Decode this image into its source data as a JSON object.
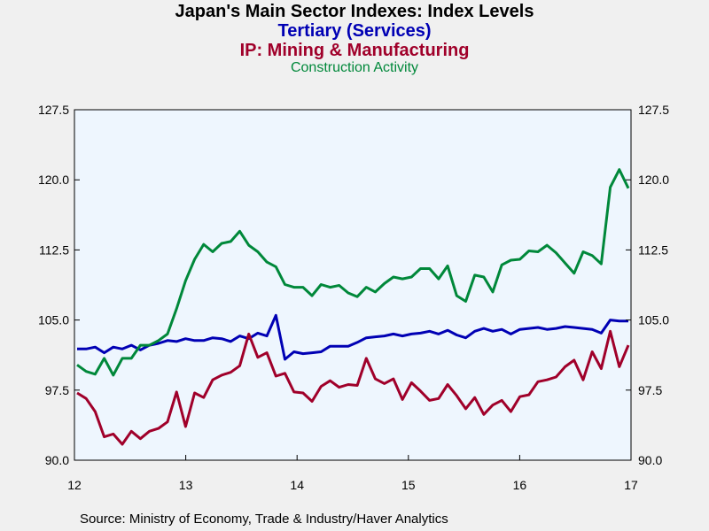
{
  "titles": {
    "main": "Japan's Main Sector Indexes: Index Levels",
    "line2": "Tertiary (Services)",
    "line3": "IP: Mining & Manufacturing",
    "line4": "Construction Activity"
  },
  "source": "Source:  Ministry of Economy, Trade & Industry/Haver Analytics",
  "chart_data": {
    "type": "line",
    "title": "Japan's Main Sector Indexes: Index Levels",
    "x_start": "2012-01",
    "x_end": "2017-01",
    "x_ticks": [
      "12",
      "13",
      "14",
      "15",
      "16",
      "17"
    ],
    "ylim": [
      90.0,
      127.5
    ],
    "y_ticks": [
      "90.0",
      "97.5",
      "105.0",
      "112.5",
      "120.0",
      "127.5"
    ],
    "y_tick_values": [
      90.0,
      97.5,
      105.0,
      112.5,
      120.0,
      127.5
    ],
    "grid": false,
    "colors": {
      "plot_bg": "#eef6fe",
      "page_bg": "#f0f0f0",
      "tertiary": "#0000b4",
      "ip": "#a0002a",
      "construction": "#00883a"
    },
    "series": [
      {
        "name": "Tertiary (Services)",
        "color": "#0000b4",
        "values": [
          101.9,
          101.9,
          102.1,
          101.5,
          102.1,
          101.9,
          102.3,
          101.8,
          102.3,
          102.5,
          102.8,
          102.7,
          103.0,
          102.8,
          102.8,
          103.1,
          103.0,
          102.7,
          103.3,
          103.0,
          103.6,
          103.3,
          105.5,
          100.8,
          101.6,
          101.4,
          101.5,
          101.6,
          102.2,
          102.2,
          102.2,
          102.6,
          103.1,
          103.2,
          103.3,
          103.5,
          103.3,
          103.5,
          103.6,
          103.8,
          103.5,
          103.9,
          103.4,
          103.1,
          103.8,
          104.1,
          103.8,
          104.0,
          103.5,
          104.0,
          104.1,
          104.2,
          104.0,
          104.1,
          104.3,
          104.2,
          104.1,
          104.0,
          103.6,
          105.0,
          104.9,
          104.9
        ]
      },
      {
        "name": "IP: Mining & Manufacturing",
        "color": "#a0002a",
        "values": [
          97.2,
          96.6,
          95.2,
          92.5,
          92.8,
          91.7,
          93.1,
          92.3,
          93.1,
          93.4,
          94.1,
          97.3,
          93.6,
          97.2,
          96.7,
          98.6,
          99.1,
          99.4,
          100.1,
          103.5,
          101.0,
          101.5,
          99.0,
          99.3,
          97.3,
          97.2,
          96.3,
          97.9,
          98.5,
          97.8,
          98.1,
          98.0,
          100.9,
          98.7,
          98.2,
          98.7,
          96.5,
          98.3,
          97.4,
          96.4,
          96.6,
          98.1,
          96.9,
          95.5,
          96.7,
          94.9,
          95.9,
          96.4,
          95.2,
          96.8,
          97.0,
          98.4,
          98.6,
          98.9,
          100.0,
          100.7,
          98.6,
          101.6,
          99.8,
          103.8,
          100.0,
          102.3
        ]
      },
      {
        "name": "Construction Activity",
        "color": "#00883a",
        "values": [
          100.2,
          99.5,
          99.2,
          100.9,
          99.1,
          100.9,
          100.9,
          102.3,
          102.3,
          102.8,
          103.5,
          106.2,
          109.2,
          111.5,
          113.1,
          112.3,
          113.2,
          113.4,
          114.5,
          113.0,
          112.3,
          111.2,
          110.7,
          108.8,
          108.5,
          108.5,
          107.6,
          108.8,
          108.5,
          108.7,
          107.9,
          107.5,
          108.5,
          108.0,
          108.9,
          109.6,
          109.4,
          109.6,
          110.5,
          110.5,
          109.4,
          110.8,
          107.6,
          107.0,
          109.8,
          109.6,
          108.0,
          110.9,
          111.4,
          111.5,
          112.4,
          112.3,
          113.0,
          112.2,
          111.1,
          110.0,
          112.3,
          111.9,
          111.0,
          119.2,
          121.1,
          119.1
        ]
      }
    ]
  }
}
